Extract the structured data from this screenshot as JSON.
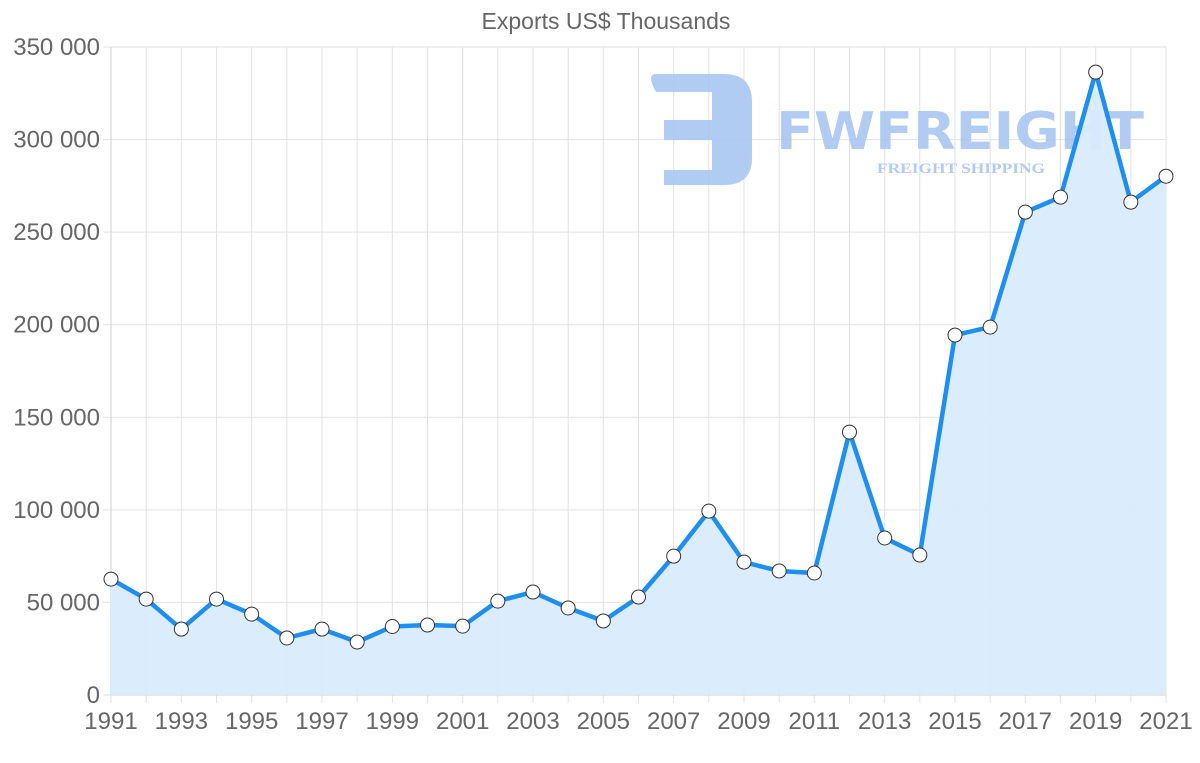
{
  "chart_data": {
    "type": "line",
    "title": "Exports US$ Thousands",
    "xlabel": "",
    "ylabel": "",
    "ylim": [
      0,
      350000
    ],
    "yticks": [
      0,
      50000,
      100000,
      150000,
      200000,
      250000,
      300000,
      350000
    ],
    "ytick_labels": [
      "0",
      "50 000",
      "100 000",
      "150 000",
      "200 000",
      "250 000",
      "300 000",
      "350 000"
    ],
    "xtick_labels": [
      "1991",
      "1993",
      "1995",
      "1997",
      "1999",
      "2001",
      "2003",
      "2005",
      "2007",
      "2009",
      "2011",
      "2013",
      "2015",
      "2017",
      "2019",
      "2021"
    ],
    "grid": true,
    "legend": null,
    "fill": true,
    "x": [
      1991,
      1992,
      1993,
      1994,
      1995,
      1996,
      1997,
      1998,
      1999,
      2000,
      2001,
      2002,
      2003,
      2004,
      2005,
      2006,
      2007,
      2008,
      2009,
      2010,
      2011,
      2012,
      2013,
      2014,
      2015,
      2016,
      2017,
      2018,
      2019,
      2020,
      2021
    ],
    "series": [
      {
        "name": "Exports US$ Thousands",
        "values": [
          62600,
          51800,
          35600,
          51800,
          43700,
          30800,
          35600,
          28600,
          37000,
          37800,
          37200,
          50700,
          55600,
          47000,
          40000,
          52900,
          75000,
          99300,
          71800,
          67000,
          65900,
          142000,
          84800,
          75600,
          194400,
          198700,
          260800,
          268900,
          336400,
          266200,
          280200
        ]
      }
    ]
  },
  "colors": {
    "line": "#1e8ff0",
    "fill": "#d9ebfc",
    "point_fill": "#ffffff",
    "point_stroke": "#333333",
    "grid": "#e2e2e2",
    "axis_text": "#666666",
    "watermark": "#a9c6f1"
  },
  "watermark": {
    "brand": "FWFREIGHT",
    "tagline": "FREIGHT SHIPPING"
  }
}
